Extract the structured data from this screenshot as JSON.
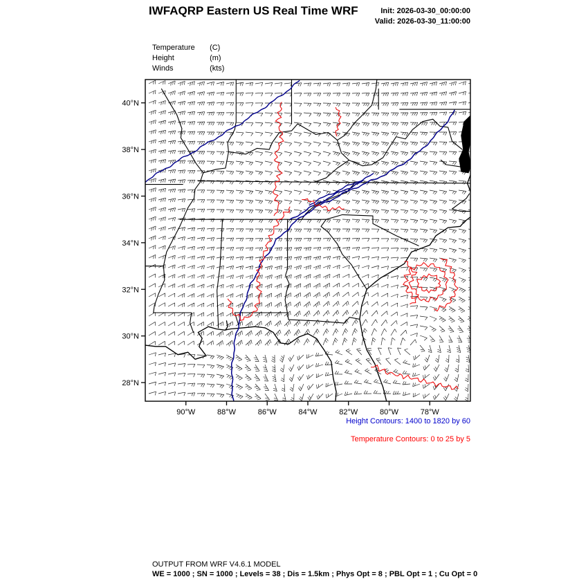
{
  "header": {
    "title": "IWFAQRP Eastern US Real Time WRF",
    "init_label": "Init: 2026-03-30_00:00:00",
    "valid_label": "Valid: 2026-03-30_11:00:00"
  },
  "legend": {
    "items": [
      {
        "name": "Temperature",
        "unit": "(C)"
      },
      {
        "name": "Height",
        "unit": "(m)"
      },
      {
        "name": "Winds",
        "unit": "(kts)"
      }
    ]
  },
  "captions": {
    "height": "Height Contours: 1400 to 1820 by 60",
    "temperature": "Temperature Contours: 0 to 25 by 5"
  },
  "footer": {
    "line1": "OUTPUT FROM WRF V4.6.1 MODEL",
    "line2": "WE = 1000 ; SN = 1000 ; Levels = 38 ; Dis = 1.5km ; Phys Opt = 8 ; PBL Opt = 1 ; Cu Opt = 0"
  },
  "chart_data": {
    "type": "map",
    "title": "IWFAQRP Eastern US Real Time WRF",
    "fields": [
      "Temperature (C)",
      "Height (m)",
      "Winds (kts)"
    ],
    "height_contours": {
      "min": 1400,
      "max": 1820,
      "interval": 60,
      "color": "#00008b"
    },
    "temperature_contours": {
      "min": 0,
      "max": 25,
      "interval": 5,
      "color": "#ee1111"
    },
    "caption_colors": {
      "height": "#0000cc",
      "temperature": "#ff0000"
    },
    "lat_ticks": [
      {
        "label": "40°N",
        "value": 40
      },
      {
        "label": "38°N",
        "value": 38
      },
      {
        "label": "36°N",
        "value": 36
      },
      {
        "label": "34°N",
        "value": 34
      },
      {
        "label": "32°N",
        "value": 32
      },
      {
        "label": "30°N",
        "value": 30
      },
      {
        "label": "28°N",
        "value": 28
      }
    ],
    "lon_ticks": [
      {
        "label": "90°W",
        "value": 90
      },
      {
        "label": "88°W",
        "value": 88
      },
      {
        "label": "86°W",
        "value": 86
      },
      {
        "label": "84°W",
        "value": 84
      },
      {
        "label": "82°W",
        "value": 82
      },
      {
        "label": "80°W",
        "value": 80
      },
      {
        "label": "78°W",
        "value": 78
      }
    ],
    "extent": {
      "lon_west": 92,
      "lon_east": 76,
      "lat_north": 41,
      "lat_south": 27.2
    },
    "wind_barbs": {
      "color": "#000000",
      "spacing_px": 14
    }
  }
}
